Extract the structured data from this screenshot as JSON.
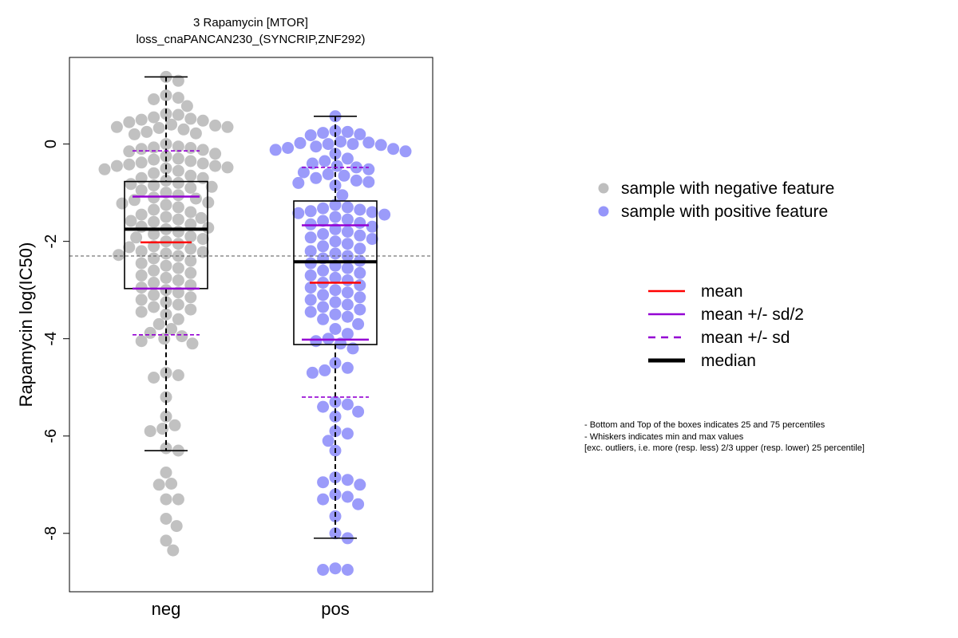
{
  "chart_data": {
    "type": "scatter",
    "title": "3 Rapamycin [MTOR]",
    "subtitle": "loss_cnaPANCAN230_(SYNCRIP,ZNF292)",
    "ylabel": "Rapamycin log(IC50)",
    "xlabel": "",
    "categories": [
      "neg",
      "pos"
    ],
    "ylim": [
      -9.2,
      1.78
    ],
    "yticks": [
      0,
      -2,
      -4,
      -6,
      -8
    ],
    "overall_mean": -2.3,
    "colors": {
      "neg": "#bebebe",
      "pos": "#9696fa",
      "pos_dark": "#5a5aee",
      "mean": "#ff0000",
      "sd": "#9400d3",
      "median": "#000000",
      "box": "#000000"
    },
    "groups": [
      {
        "name": "neg",
        "min": -6.3,
        "q1": -2.97,
        "median": -1.75,
        "q3": -0.77,
        "max": 1.38,
        "mean": -2.02,
        "mean_minus_half_sd": -2.97,
        "mean_plus_half_sd": -1.08,
        "mean_minus_sd": -3.92,
        "mean_plus_sd": -0.14,
        "values": [
          1.38,
          1.3,
          1.0,
          0.95,
          0.92,
          0.78,
          0.62,
          0.6,
          0.55,
          0.52,
          0.5,
          0.48,
          0.45,
          0.4,
          0.38,
          0.35,
          0.35,
          0.33,
          0.3,
          0.25,
          0.22,
          0.2,
          0.0,
          -0.05,
          -0.07,
          -0.08,
          -0.1,
          -0.12,
          -0.15,
          -0.2,
          -0.25,
          -0.3,
          -0.32,
          -0.35,
          -0.38,
          -0.4,
          -0.42,
          -0.45,
          -0.45,
          -0.48,
          -0.5,
          -0.52,
          -0.55,
          -0.6,
          -0.65,
          -0.7,
          -0.7,
          -0.75,
          -0.8,
          -0.82,
          -0.85,
          -0.88,
          -0.9,
          -0.95,
          -1.0,
          -1.05,
          -1.1,
          -1.12,
          -1.15,
          -1.2,
          -1.22,
          -1.25,
          -1.3,
          -1.35,
          -1.4,
          -1.45,
          -1.5,
          -1.52,
          -1.55,
          -1.58,
          -1.6,
          -1.65,
          -1.7,
          -1.72,
          -1.75,
          -1.8,
          -1.85,
          -1.9,
          -1.92,
          -1.95,
          -2.0,
          -2.05,
          -2.1,
          -2.12,
          -2.15,
          -2.2,
          -2.22,
          -2.25,
          -2.28,
          -2.3,
          -2.35,
          -2.4,
          -2.45,
          -2.5,
          -2.55,
          -2.6,
          -2.65,
          -2.7,
          -2.75,
          -2.8,
          -2.85,
          -2.9,
          -2.95,
          -3.0,
          -3.05,
          -3.1,
          -3.15,
          -3.2,
          -3.25,
          -3.3,
          -3.35,
          -3.4,
          -3.45,
          -3.5,
          -3.6,
          -3.7,
          -3.8,
          -3.88,
          -3.95,
          -4.0,
          -4.05,
          -4.1,
          -4.7,
          -4.75,
          -4.8,
          -5.2,
          -5.6,
          -5.78,
          -5.85,
          -5.9,
          -6.25,
          -6.3,
          -6.75,
          -6.98,
          -7.0,
          -7.3,
          -7.3,
          -7.7,
          -7.85,
          -8.15,
          -8.35
        ]
      },
      {
        "name": "pos",
        "min": -8.1,
        "q1": -4.12,
        "median": -2.42,
        "q3": -1.17,
        "max": 0.57,
        "mean": -2.85,
        "mean_minus_half_sd": -4.02,
        "mean_plus_half_sd": -1.67,
        "mean_minus_sd": -5.2,
        "mean_plus_sd": -0.48,
        "values": [
          0.57,
          0.27,
          0.25,
          0.23,
          0.2,
          0.18,
          0.05,
          0.03,
          0.02,
          0.0,
          0.0,
          -0.02,
          -0.05,
          -0.08,
          -0.1,
          -0.12,
          -0.15,
          -0.2,
          -0.3,
          -0.35,
          -0.4,
          -0.45,
          -0.48,
          -0.52,
          -0.58,
          -0.62,
          -0.65,
          -0.7,
          -0.75,
          -0.78,
          -0.8,
          -0.85,
          -1.05,
          -1.25,
          -1.3,
          -1.32,
          -1.35,
          -1.38,
          -1.4,
          -1.42,
          -1.45,
          -1.5,
          -1.55,
          -1.58,
          -1.62,
          -1.65,
          -1.7,
          -1.75,
          -1.8,
          -1.85,
          -1.88,
          -1.92,
          -1.95,
          -2.0,
          -2.05,
          -2.1,
          -2.15,
          -2.2,
          -2.25,
          -2.3,
          -2.35,
          -2.4,
          -2.45,
          -2.5,
          -2.55,
          -2.6,
          -2.65,
          -2.7,
          -2.75,
          -2.8,
          -2.85,
          -2.9,
          -2.95,
          -3.0,
          -3.05,
          -3.1,
          -3.15,
          -3.2,
          -3.25,
          -3.3,
          -3.35,
          -3.4,
          -3.45,
          -3.5,
          -3.55,
          -3.6,
          -3.7,
          -3.8,
          -3.9,
          -4.0,
          -4.05,
          -4.1,
          -4.2,
          -4.5,
          -4.6,
          -4.65,
          -4.7,
          -5.3,
          -5.35,
          -5.4,
          -5.5,
          -5.6,
          -5.9,
          -5.95,
          -6.1,
          -6.3,
          -6.85,
          -6.9,
          -6.95,
          -7.0,
          -7.2,
          -7.25,
          -7.3,
          -7.4,
          -7.65,
          -8.0,
          -8.1,
          -8.72,
          -8.75,
          -8.75
        ]
      }
    ],
    "legend": {
      "points": [
        {
          "label": "sample with negative feature",
          "color": "#bebebe"
        },
        {
          "label": "sample with positive feature",
          "color": "#9696fa"
        }
      ],
      "lines": [
        {
          "label": "mean",
          "color": "#ff0000",
          "style": "solid",
          "weight": "normal"
        },
        {
          "label": "mean +/- sd/2",
          "color": "#9400d3",
          "style": "solid",
          "weight": "normal"
        },
        {
          "label": "mean +/- sd",
          "color": "#9400d3",
          "style": "dashed",
          "weight": "normal"
        },
        {
          "label": "median",
          "color": "#000000",
          "style": "solid",
          "weight": "bold"
        }
      ]
    },
    "notes": [
      "- Bottom and Top of the boxes indicates 25 and 75 percentiles",
      "- Whiskers indicates min and max values",
      "[exc. outliers, i.e. more (resp. less) 2/3 upper (resp. lower) 25 percentile]"
    ]
  }
}
